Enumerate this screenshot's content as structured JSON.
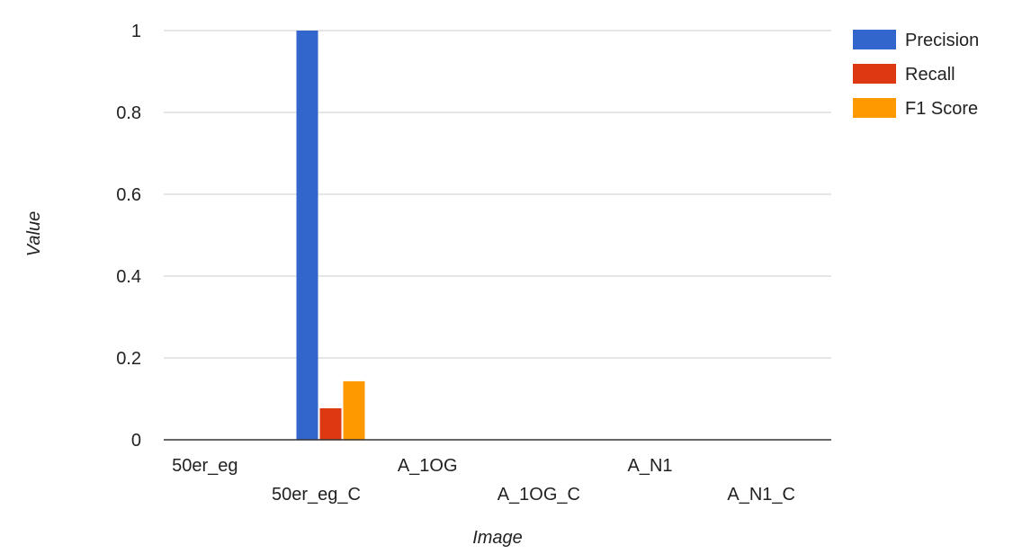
{
  "chart_data": {
    "type": "bar",
    "title": "",
    "xlabel": "Image",
    "ylabel": "Value",
    "categories": [
      "50er_eg",
      "50er_eg_C",
      "A_1OG",
      "A_1OG_C",
      "A_N1",
      "A_N1_C"
    ],
    "series": [
      {
        "name": "Precision",
        "color": "#3366cc",
        "values": [
          0,
          1,
          0,
          0,
          0,
          0
        ]
      },
      {
        "name": "Recall",
        "color": "#dc3912",
        "values": [
          0,
          0.077,
          0,
          0,
          0,
          0
        ]
      },
      {
        "name": "F1 Score",
        "color": "#ff9900",
        "values": [
          0,
          0.143,
          0,
          0,
          0,
          0
        ]
      }
    ],
    "ylim": [
      0,
      1
    ],
    "yticks": [
      0,
      0.2,
      0.4,
      0.6,
      0.8,
      1
    ],
    "ytick_labels": [
      "0",
      "0.2",
      "0.4",
      "0.6",
      "0.8",
      "1"
    ],
    "grid": true,
    "legend_position": "right",
    "x_tick_labels_staggered": true,
    "gridline_color": "#cccccc",
    "axis_color": "#333333"
  }
}
